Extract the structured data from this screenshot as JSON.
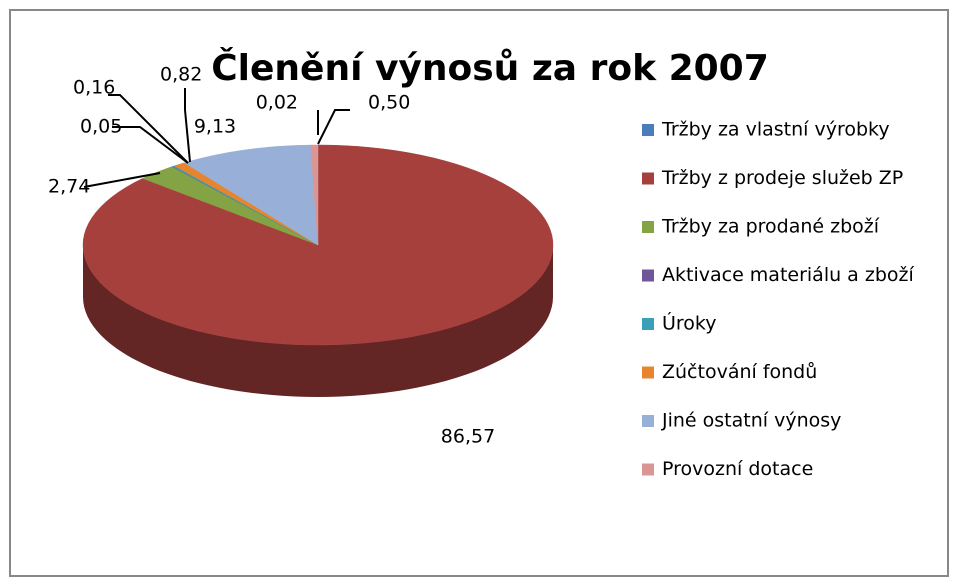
{
  "chart_data": {
    "type": "pie3d",
    "title": "Členění výnosů za rok 2007",
    "categories": [
      "Tržby za vlastní výrobky",
      "Tržby z prodeje služeb ZP",
      "Tržby za prodané zboží",
      "Aktivace materiálu a zboží",
      "Úroky",
      "Zúčtování fondů",
      "Jiné ostatní výnosy",
      "Provozní dotace"
    ],
    "values": [
      0.02,
      86.57,
      2.74,
      0.05,
      0.16,
      0.82,
      9.13,
      0.5
    ],
    "value_labels": [
      "0,02",
      "86,57",
      "2,74",
      "0,05",
      "0,16",
      "0,82",
      "9,13",
      "0,50"
    ],
    "colors": [
      "#4a7ebb",
      "#a5403d",
      "#83a344",
      "#6f559a",
      "#3aa0b8",
      "#e7852f",
      "#98b0d8",
      "#d99694"
    ],
    "legend": "right"
  }
}
